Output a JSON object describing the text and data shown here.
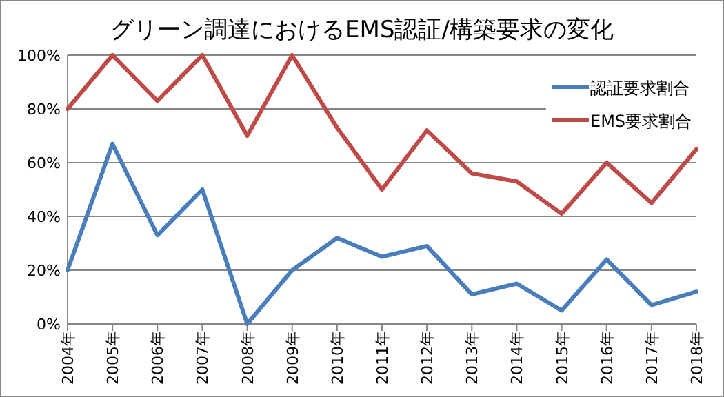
{
  "chart_data": {
    "type": "line",
    "title": "グリーン調達におけるEMS認証/構築要求の変化",
    "categories": [
      "2004年",
      "2005年",
      "2006年",
      "2007年",
      "2008年",
      "2009年",
      "2010年",
      "2011年",
      "2012年",
      "2013年",
      "2014年",
      "2015年",
      "2016年",
      "2017年",
      "2018年"
    ],
    "series": [
      {
        "name": "認証要求割合",
        "color": "#4a7ebb",
        "values": [
          20,
          67,
          33,
          50,
          0,
          20,
          32,
          25,
          29,
          11,
          15,
          5,
          24,
          7,
          12
        ]
      },
      {
        "name": "EMS要求割合",
        "color": "#be4b48",
        "values": [
          80,
          100,
          83,
          100,
          70,
          100,
          73,
          50,
          72,
          56,
          53,
          41,
          60,
          45,
          65
        ]
      }
    ],
    "ylim": [
      0,
      100
    ],
    "yticks": [
      {
        "value": 0,
        "label": "0%"
      },
      {
        "value": 20,
        "label": "20%"
      },
      {
        "value": 40,
        "label": "40%"
      },
      {
        "value": 60,
        "label": "60%"
      },
      {
        "value": 80,
        "label": "80%"
      },
      {
        "value": 100,
        "label": "100%"
      }
    ],
    "grid": "y",
    "legend": "top right"
  }
}
